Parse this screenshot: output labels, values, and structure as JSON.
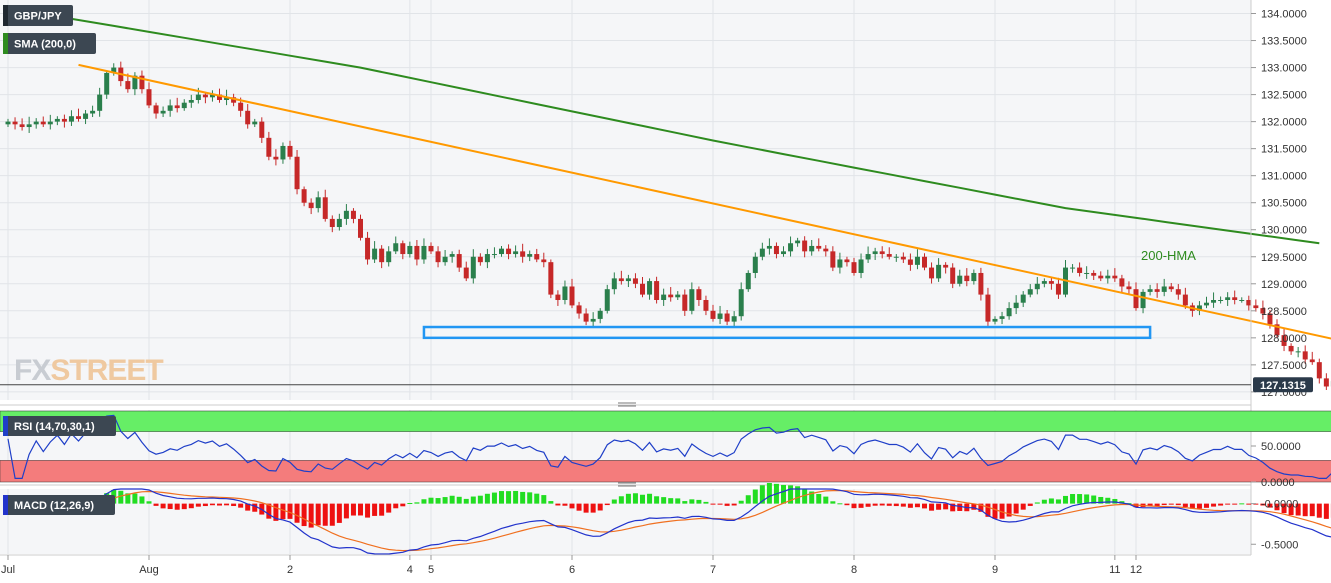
{
  "chart_data": [
    {
      "panel": "price",
      "type": "candlestick",
      "symbol": "GBP/JPY",
      "indicator_label": "SMA (200,0)",
      "last_price_label": "127.1315",
      "last_price": 127.1315,
      "ylim": [
        126.85,
        134.25
      ],
      "y_ticks": [
        {
          "value": 134.0,
          "label": "134.0000"
        },
        {
          "value": 133.5,
          "label": "133.5000"
        },
        {
          "value": 133.0,
          "label": "133.0000"
        },
        {
          "value": 132.5,
          "label": "132.5000"
        },
        {
          "value": 132.0,
          "label": "132.0000"
        },
        {
          "value": 131.5,
          "label": "131.5000"
        },
        {
          "value": 131.0,
          "label": "131.0000"
        },
        {
          "value": 130.5,
          "label": "130.5000"
        },
        {
          "value": 130.0,
          "label": "130.0000"
        },
        {
          "value": 129.5,
          "label": "129.5000"
        },
        {
          "value": 129.0,
          "label": "129.0000"
        },
        {
          "value": 128.5,
          "label": "128.5000"
        },
        {
          "value": 128.0,
          "label": "128.0000"
        },
        {
          "value": 127.5,
          "label": "127.5000"
        },
        {
          "value": 127.0,
          "label": "127.0000"
        }
      ],
      "closes": [
        132.0,
        131.95,
        131.9,
        131.95,
        132.0,
        131.95,
        132.0,
        132.05,
        132.0,
        132.1,
        132.05,
        132.15,
        132.2,
        132.5,
        132.9,
        133.0,
        132.75,
        132.6,
        132.85,
        132.6,
        132.3,
        132.15,
        132.2,
        132.3,
        132.25,
        132.35,
        132.4,
        132.5,
        132.45,
        132.5,
        132.4,
        132.45,
        132.35,
        132.2,
        131.95,
        132.0,
        131.7,
        131.35,
        131.3,
        131.55,
        131.35,
        130.75,
        130.5,
        130.4,
        130.6,
        130.2,
        130.05,
        130.2,
        130.35,
        130.2,
        129.85,
        129.45,
        129.65,
        129.4,
        129.6,
        129.75,
        129.55,
        129.7,
        129.45,
        129.7,
        129.6,
        129.4,
        129.5,
        129.55,
        129.3,
        129.1,
        129.5,
        129.4,
        129.55,
        129.55,
        129.65,
        129.55,
        129.6,
        129.5,
        129.55,
        129.45,
        129.4,
        128.8,
        128.7,
        128.95,
        128.6,
        128.45,
        128.3,
        128.35,
        128.5,
        128.9,
        129.1,
        129.05,
        129.1,
        129.0,
        128.8,
        129.05,
        128.7,
        128.8,
        128.75,
        128.8,
        128.5,
        128.9,
        128.7,
        128.5,
        128.35,
        128.45,
        128.3,
        128.4,
        128.9,
        129.2,
        129.5,
        129.65,
        129.7,
        129.55,
        129.6,
        129.75,
        129.8,
        129.6,
        129.7,
        129.65,
        129.6,
        129.3,
        129.45,
        129.4,
        129.2,
        129.45,
        129.55,
        129.6,
        129.55,
        129.5,
        129.5,
        129.45,
        129.35,
        129.5,
        129.3,
        129.1,
        129.35,
        129.3,
        129.0,
        129.15,
        129.05,
        129.2,
        128.8,
        128.3,
        128.35,
        128.4,
        128.55,
        128.65,
        128.8,
        128.9,
        129.0,
        129.05,
        129.0,
        128.8,
        129.3,
        129.3,
        129.2,
        129.2,
        129.15,
        129.1,
        129.15,
        129.1,
        128.95,
        128.9,
        128.55,
        128.85,
        128.9,
        128.85,
        128.95,
        128.9,
        128.8,
        128.6,
        128.5,
        128.6,
        128.65,
        128.7,
        128.7,
        128.75,
        128.7,
        128.7,
        128.6,
        128.55,
        128.45,
        128.25,
        128.05,
        127.85,
        127.75,
        127.75,
        127.6,
        127.55,
        127.25,
        127.1,
        127.2,
        127.35,
        127.35,
        127.0,
        127.1,
        127.2,
        127.1
      ],
      "series": [
        {
          "name": "200-HMA",
          "color": "#2e8b1f",
          "x": [
            0,
            50,
            100,
            150,
            186
          ],
          "y": [
            134.1,
            133.0,
            131.65,
            130.4,
            129.75
          ]
        },
        {
          "name": "Trend line",
          "color": "#ff9900",
          "x": [
            10,
            189
          ],
          "y": [
            133.05,
            127.95
          ]
        }
      ],
      "rectangle": {
        "x0": 59,
        "x1": 162,
        "y0": 128.0,
        "y1": 128.2,
        "color": "#2196f3"
      },
      "annotation": "200-HMA",
      "watermark": "FXSTREET"
    },
    {
      "panel": "rsi",
      "type": "line",
      "label": "RSI (14,70,30,1)",
      "ylim": [
        0,
        100
      ],
      "y_ticks": [
        {
          "value": 50,
          "label": "50.0000"
        },
        {
          "value": 0,
          "label": "0.0000"
        }
      ],
      "overbought": 70,
      "oversold": 30,
      "colors": {
        "line": "#1f3fc8",
        "overbought": "#66ee66",
        "oversold": "#f47c7c"
      }
    },
    {
      "panel": "macd",
      "type": "line+histogram",
      "label": "MACD (12,26,9)",
      "ylim": [
        -0.62,
        0.18
      ],
      "y_ticks": [
        {
          "value": -0.0,
          "label": "-0.0000"
        },
        {
          "value": -0.5,
          "label": "-0.5000"
        }
      ],
      "colors": {
        "macd": "#2233cc",
        "signal": "#f07020",
        "hist_pos": "#22dd22",
        "hist_neg": "#ee1111"
      }
    },
    {
      "panel": "x-axis",
      "x_ticks": [
        {
          "index": 0,
          "label": "Jul"
        },
        {
          "index": 20,
          "label": "Aug"
        },
        {
          "index": 40,
          "label": "2"
        },
        {
          "index": 57,
          "label": "4"
        },
        {
          "index": 60,
          "label": "5"
        },
        {
          "index": 80,
          "label": "6"
        },
        {
          "index": 100,
          "label": "7"
        },
        {
          "index": 120,
          "label": "8"
        },
        {
          "index": 140,
          "label": "9"
        },
        {
          "index": 157,
          "label": "11"
        },
        {
          "index": 160,
          "label": "12"
        }
      ]
    }
  ]
}
